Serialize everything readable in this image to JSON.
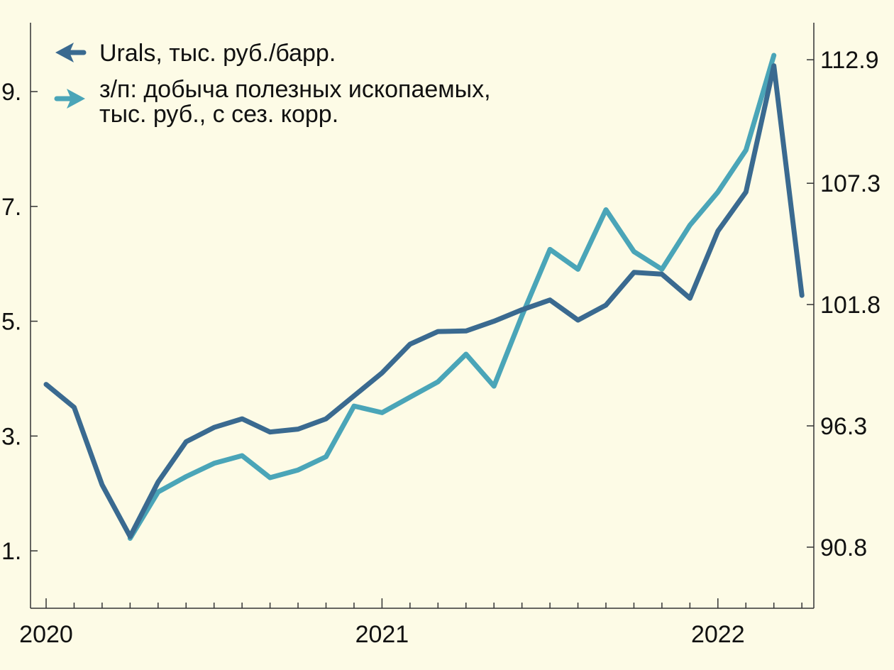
{
  "chart_data": {
    "type": "line",
    "title": "",
    "xlabel": "",
    "ylabel_left": "",
    "ylabel_right": "",
    "x_tick_labels": [
      "2020",
      "2021",
      "2022"
    ],
    "left_axis": {
      "ticks": [
        "1.",
        "3.",
        "5.",
        "7.",
        "9."
      ],
      "range": [
        0,
        10.2
      ]
    },
    "right_axis": {
      "ticks": [
        "90.8",
        "96.3",
        "101.8",
        "107.3",
        "112.9"
      ],
      "range": [
        88.03,
        114.58
      ]
    },
    "months": [
      "2020-01",
      "2020-02",
      "2020-03",
      "2020-04",
      "2020-05",
      "2020-06",
      "2020-07",
      "2020-08",
      "2020-09",
      "2020-10",
      "2020-11",
      "2020-12",
      "2021-01",
      "2021-02",
      "2021-03",
      "2021-04",
      "2021-05",
      "2021-06",
      "2021-07",
      "2021-08",
      "2021-09",
      "2021-10",
      "2021-11",
      "2021-12",
      "2022-01",
      "2022-02",
      "2022-03",
      "2022-04"
    ],
    "legend_position": "top-left",
    "series": [
      {
        "name": "Urals, тыс. руб./барр.",
        "axis": "left",
        "color": "#3a6a90",
        "values": [
          3.9,
          3.5,
          2.15,
          1.25,
          2.2,
          2.9,
          3.15,
          3.3,
          3.07,
          3.12,
          3.3,
          3.7,
          4.1,
          4.6,
          4.82,
          4.83,
          5.0,
          5.2,
          5.37,
          5.02,
          5.28,
          5.85,
          5.82,
          5.4,
          6.57,
          7.25,
          9.45,
          5.45
        ]
      },
      {
        "name": "з/п: добыча полезных ископаемых, тыс. руб., с сез. корр.",
        "axis": "right",
        "color": "#4aa5b8",
        "values": [
          null,
          null,
          null,
          91.2,
          93.3,
          94.0,
          94.6,
          94.95,
          93.95,
          94.3,
          94.9,
          97.2,
          96.9,
          97.6,
          98.3,
          99.55,
          98.1,
          101.3,
          104.3,
          103.4,
          106.1,
          104.2,
          103.4,
          105.4,
          106.9,
          108.8,
          113.1,
          null
        ]
      }
    ]
  },
  "legend": {
    "urals_label": "Urals, тыс. руб./барр.",
    "wage_label_line1": "з/п: добыча полезных ископаемых,",
    "wage_label_line2": "тыс. руб., с сез. корр."
  },
  "colors": {
    "background": "#fdfbe6",
    "urals": "#3a6a90",
    "wage": "#4aa5b8"
  }
}
